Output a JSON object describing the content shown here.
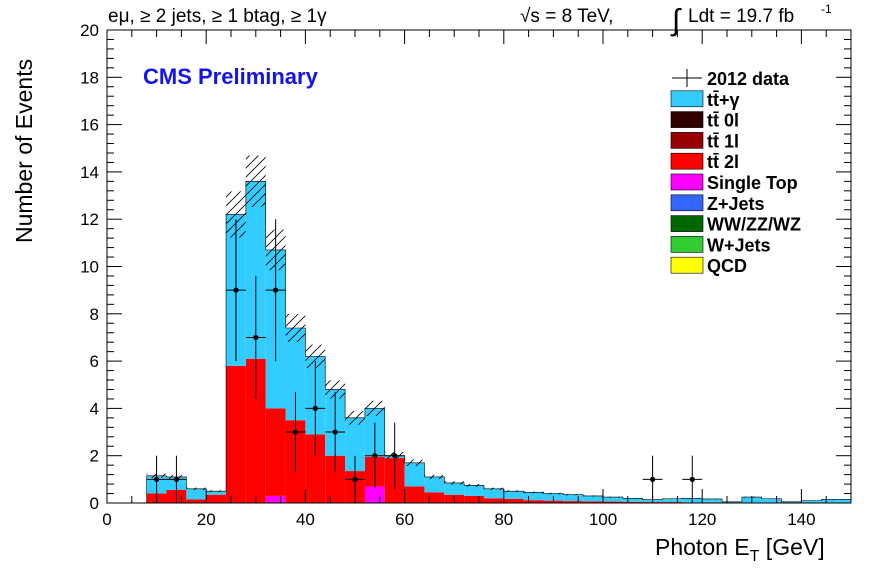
{
  "chart_data": {
    "type": "bar",
    "stacked": true,
    "header": {
      "selection": "eμ, ≥ 2 jets, ≥ 1 btag, ≥ 1γ",
      "sqrt_s": "√s = 8 TeV,",
      "lumi_text": "Ldt = 19.7 fb",
      "lumi_exp": "-1",
      "integral_sign": "∫"
    },
    "cms_label": "CMS Preliminary",
    "xlabel": "Photon E",
    "xlabel_sub": "T",
    "xlabel_unit": " [GeV]",
    "ylabel": "Number of Events",
    "xlim": [
      0,
      150
    ],
    "ylim": [
      0,
      20
    ],
    "x_ticks": [
      0,
      20,
      40,
      60,
      80,
      100,
      120,
      140
    ],
    "y_ticks": [
      0,
      2,
      4,
      6,
      8,
      10,
      12,
      14,
      16,
      18,
      20
    ],
    "bin_edges": [
      8,
      12,
      16,
      20,
      24,
      28,
      32,
      36,
      40,
      44,
      48,
      52,
      56,
      60,
      64,
      68,
      72,
      76,
      80,
      84,
      88,
      92,
      96,
      100,
      104,
      108,
      112,
      116,
      120,
      124,
      128,
      132,
      136,
      140,
      144,
      148,
      150
    ],
    "series": [
      {
        "name": "QCD",
        "color": "#ffff00",
        "values": [
          0,
          0,
          0,
          0,
          0,
          0,
          0,
          0,
          0,
          0,
          0,
          0,
          0,
          0,
          0,
          0,
          0,
          0,
          0,
          0,
          0,
          0,
          0,
          0,
          0,
          0,
          0,
          0,
          0,
          0,
          0,
          0,
          0,
          0,
          0,
          0
        ]
      },
      {
        "name": "W+Jets",
        "color": "#33cc33",
        "values": [
          0,
          0,
          0,
          0,
          0,
          0,
          0,
          0,
          0,
          0,
          0,
          0,
          0,
          0,
          0,
          0,
          0,
          0,
          0,
          0,
          0,
          0,
          0,
          0,
          0,
          0,
          0,
          0,
          0,
          0,
          0,
          0,
          0,
          0,
          0,
          0
        ]
      },
      {
        "name": "WW/ZZ/WZ",
        "color": "#006600",
        "values": [
          0,
          0,
          0,
          0,
          0,
          0,
          0,
          0,
          0,
          0,
          0,
          0,
          0,
          0,
          0,
          0,
          0,
          0,
          0,
          0,
          0,
          0,
          0,
          0,
          0,
          0,
          0,
          0,
          0,
          0,
          0,
          0,
          0,
          0,
          0,
          0
        ]
      },
      {
        "name": "Z+Jets",
        "color": "#3366ff",
        "values": [
          0,
          0,
          0,
          0,
          0,
          0,
          0,
          0,
          0,
          0,
          0,
          0,
          0,
          0,
          0,
          0,
          0,
          0,
          0,
          0,
          0,
          0,
          0,
          0,
          0,
          0,
          0,
          0,
          0,
          0,
          0,
          0,
          0,
          0,
          0,
          0
        ]
      },
      {
        "name": "Single Top",
        "color": "#ff00ff",
        "values": [
          0,
          0,
          0,
          0,
          0,
          0,
          0.3,
          0,
          0,
          0,
          0,
          0.7,
          0,
          0,
          0,
          0,
          0,
          0,
          0,
          0,
          0,
          0,
          0,
          0,
          0,
          0,
          0,
          0,
          0,
          0,
          0,
          0,
          0,
          0,
          0,
          0
        ]
      },
      {
        "name": "tt̄ 2l",
        "color": "#ff0000",
        "values": [
          0.4,
          0.55,
          0.15,
          0.35,
          5.8,
          6.1,
          3.7,
          3.5,
          2.9,
          2.0,
          1.35,
          1.25,
          1.9,
          0.7,
          0.45,
          0.35,
          0.3,
          0.2,
          0.18,
          0.12,
          0.1,
          0.08,
          0.07,
          0.06,
          0.05,
          0.04,
          0.04,
          0.03,
          0.03,
          0.02,
          0.02,
          0.02,
          0.02,
          0.01,
          0.01,
          0.01
        ]
      },
      {
        "name": "tt̄ 1l",
        "color": "#990000",
        "values": [
          0,
          0,
          0,
          0,
          0,
          0,
          0,
          0,
          0,
          0,
          0,
          0,
          0,
          0,
          0,
          0,
          0,
          0,
          0,
          0,
          0,
          0,
          0,
          0,
          0,
          0,
          0,
          0,
          0,
          0,
          0,
          0,
          0,
          0,
          0,
          0
        ]
      },
      {
        "name": "tt̄ 0l",
        "color": "#330000",
        "values": [
          0,
          0,
          0,
          0,
          0,
          0,
          0,
          0,
          0,
          0,
          0,
          0,
          0,
          0,
          0,
          0,
          0,
          0,
          0,
          0,
          0,
          0,
          0,
          0,
          0,
          0,
          0,
          0,
          0,
          0,
          0,
          0,
          0,
          0,
          0,
          0
        ]
      },
      {
        "name": "tt̄+γ",
        "color": "#33ccff",
        "values": [
          0.75,
          0.55,
          0.45,
          0.15,
          6.4,
          7.5,
          6.7,
          3.9,
          3.3,
          2.8,
          2.25,
          2.05,
          0.1,
          1.0,
          0.65,
          0.5,
          0.45,
          0.4,
          0.32,
          0.33,
          0.3,
          0.27,
          0.23,
          0.19,
          0.15,
          0.1,
          0.14,
          0.17,
          0.14,
          0.03,
          0.23,
          0.16,
          0.03,
          0.09,
          0.14,
          0.14
        ]
      }
    ],
    "uncertainty": {
      "label": "hatched band",
      "relative": 0.08
    },
    "data": {
      "name": "2012 data",
      "x": [
        10,
        14,
        26,
        30,
        34,
        38,
        42,
        46,
        50,
        54,
        58,
        110,
        118
      ],
      "y": [
        1,
        1,
        9,
        7,
        9,
        3,
        4,
        3,
        1,
        2,
        2,
        1,
        1
      ],
      "err": [
        1,
        1,
        3,
        2.6,
        3,
        1.7,
        2,
        1.7,
        1,
        1.4,
        1.4,
        1,
        1
      ],
      "xerr": 2
    },
    "legend_position": "top-right",
    "legend": [
      "2012 data",
      "tt̄+γ",
      "tt̄ 0l",
      "tt̄ 1l",
      "tt̄ 2l",
      "Single Top",
      "Z+Jets",
      "WW/ZZ/WZ",
      "W+Jets",
      "QCD"
    ]
  }
}
